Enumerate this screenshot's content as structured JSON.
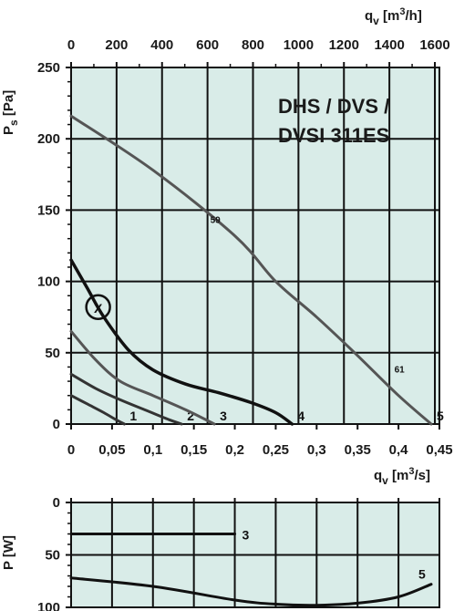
{
  "chart_data": [
    {
      "type": "line",
      "title_lines": [
        "DHS / DVS /",
        "DVSI 311ES"
      ],
      "ylabel": "P_s [Pa]",
      "ylabel_main": "P",
      "ylabel_sub": "s",
      "ylabel_unit": " [Pa]",
      "xlabel_top": "q_v [m^3/h]",
      "xlabel_top_main": "q",
      "xlabel_top_sub": "v",
      "xlabel_top_unit": " [m",
      "xlabel_top_sup": "3",
      "xlabel_top_end": "/h]",
      "xlabel_bottom": "q_v [m^3/s]",
      "xlabel_bottom_main": "q",
      "xlabel_bottom_sub": "v",
      "xlabel_bottom_unit": " [m",
      "xlabel_bottom_sup": "3",
      "xlabel_bottom_end": "/s]",
      "xlim": [
        0,
        0.45
      ],
      "ylim": [
        0,
        250
      ],
      "x_ticks": [
        "0",
        "0,05",
        "0,1",
        "0,15",
        "0,2",
        "0,25",
        "0,3",
        "0,35",
        "0,4",
        "0,45"
      ],
      "x_top_ticks": [
        "0",
        "200",
        "400",
        "600",
        "800",
        "1000",
        "1200",
        "1400",
        "1600"
      ],
      "y_ticks": [
        "0",
        "50",
        "100",
        "150",
        "200",
        "250"
      ],
      "grid": true,
      "background": "#d9ece8",
      "series": [
        {
          "name": "1",
          "x": [
            0,
            0.02,
            0.04,
            0.055,
            0.065
          ],
          "y": [
            20,
            14,
            8,
            3,
            0
          ]
        },
        {
          "name": "2",
          "x": [
            0,
            0.03,
            0.06,
            0.09,
            0.12,
            0.135
          ],
          "y": [
            35,
            25,
            17,
            10,
            3,
            0
          ]
        },
        {
          "name": "3",
          "x": [
            0,
            0.03,
            0.06,
            0.1,
            0.14,
            0.175
          ],
          "y": [
            65,
            45,
            30,
            20,
            10,
            0
          ]
        },
        {
          "name": "4",
          "x": [
            0,
            0.02,
            0.04,
            0.07,
            0.1,
            0.14,
            0.18,
            0.22,
            0.25,
            0.27
          ],
          "y": [
            115,
            95,
            75,
            52,
            38,
            28,
            22,
            15,
            8,
            0
          ]
        },
        {
          "name": "5",
          "x": [
            0,
            0.1,
            0.2,
            0.25,
            0.3,
            0.35,
            0.4,
            0.44
          ],
          "y": [
            216,
            178,
            132,
            100,
            75,
            48,
            20,
            0
          ]
        }
      ],
      "curve_labels": [
        "1",
        "2",
        "3",
        "4",
        "5"
      ],
      "annotations": [
        "59",
        "61"
      ],
      "marker": {
        "label": "X",
        "x": 0.033,
        "y": 82
      }
    },
    {
      "type": "line",
      "ylabel": "P [W]",
      "xlim": [
        0,
        0.45
      ],
      "ylim": [
        0,
        100
      ],
      "y_inverted": true,
      "y_ticks": [
        "0",
        "50",
        "100"
      ],
      "grid": true,
      "background": "#d9ece8",
      "series": [
        {
          "name": "3",
          "x": [
            0,
            0.2
          ],
          "y": [
            30,
            30
          ]
        },
        {
          "name": "5",
          "x": [
            0,
            0.1,
            0.2,
            0.25,
            0.3,
            0.35,
            0.4,
            0.44
          ],
          "y": [
            72,
            80,
            93,
            97,
            98,
            96,
            90,
            78
          ]
        }
      ],
      "curve_labels": [
        "3",
        "5"
      ]
    }
  ]
}
